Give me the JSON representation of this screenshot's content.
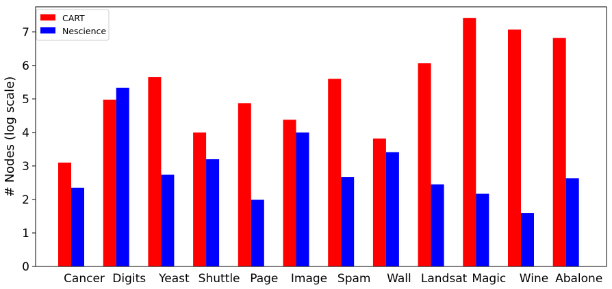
{
  "chart_data": {
    "type": "bar",
    "categories": [
      "Cancer",
      "Digits",
      "Yeast",
      "Shuttle",
      "Page",
      "Image",
      "Spam",
      "Wall",
      "Landsat",
      "Magic",
      "Wine",
      "Abalone"
    ],
    "series": [
      {
        "name": "CART",
        "color": "#ff0000",
        "values": [
          3.1,
          4.98,
          5.65,
          4.0,
          4.87,
          4.38,
          5.6,
          3.82,
          6.07,
          7.42,
          7.07,
          6.82
        ]
      },
      {
        "name": "Nescience",
        "color": "#0000ff",
        "values": [
          2.35,
          5.33,
          2.74,
          3.2,
          1.99,
          4.0,
          2.67,
          3.41,
          2.45,
          2.17,
          1.59,
          2.63
        ]
      }
    ],
    "title": "",
    "xlabel": "",
    "ylabel": "# Nodes (log scale)",
    "ylim": [
      0,
      7.75
    ],
    "yticks": [
      0,
      1,
      2,
      3,
      4,
      5,
      6,
      7
    ],
    "grid": false,
    "legend": "top-left"
  }
}
